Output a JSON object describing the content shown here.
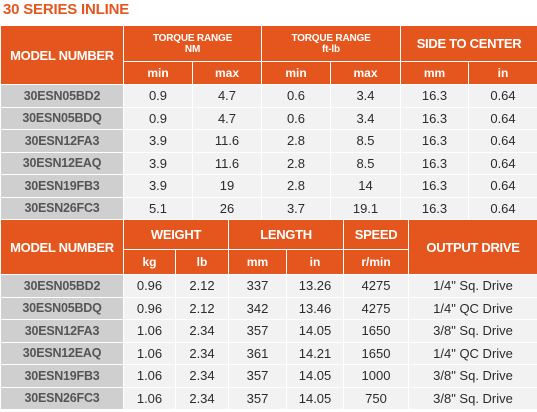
{
  "title": "30 SERIES INLINE",
  "table1": {
    "model_header": "MODEL NUMBER",
    "group1_line1": "TORQUE RANGE",
    "group1_line2": "NM",
    "group2_line1": "TORQUE RANGE",
    "group2_line2": "ft-lb",
    "group3": "SIDE TO CENTER",
    "units": [
      "min",
      "max",
      "min",
      "max",
      "mm",
      "in"
    ],
    "rows": [
      [
        "30ESN05BD2",
        "0.9",
        "4.7",
        "0.6",
        "3.4",
        "16.3",
        "0.64"
      ],
      [
        "30ESN05BDQ",
        "0.9",
        "4.7",
        "0.6",
        "3.4",
        "16.3",
        "0.64"
      ],
      [
        "30ESN12FA3",
        "3.9",
        "11.6",
        "2.8",
        "8.5",
        "16.3",
        "0.64"
      ],
      [
        "30ESN12EAQ",
        "3.9",
        "11.6",
        "2.8",
        "8.5",
        "16.3",
        "0.64"
      ],
      [
        "30ESN19FB3",
        "3.9",
        "19",
        "2.8",
        "14",
        "16.3",
        "0.64"
      ],
      [
        "30ESN26FC3",
        "5.1",
        "26",
        "3.7",
        "19.1",
        "16.3",
        "0.64"
      ]
    ]
  },
  "table2": {
    "model_header": "MODEL NUMBER",
    "group1": "WEIGHT",
    "group2": "LENGTH",
    "group3": "SPEED",
    "group4": "OUTPUT DRIVE",
    "units": [
      "kg",
      "lb",
      "mm",
      "in",
      "r/min"
    ],
    "rows": [
      [
        "30ESN05BD2",
        "0.96",
        "2.12",
        "337",
        "13.26",
        "4275",
        "1/4\" Sq. Drive"
      ],
      [
        "30ESN05BDQ",
        "0.96",
        "2.12",
        "342",
        "13.46",
        "4275",
        "1/4\" QC Drive"
      ],
      [
        "30ESN12FA3",
        "1.06",
        "2.34",
        "357",
        "14.05",
        "1650",
        "3/8\" Sq. Drive"
      ],
      [
        "30ESN12EAQ",
        "1.06",
        "2.34",
        "361",
        "14.21",
        "1650",
        "1/4\" QC Drive"
      ],
      [
        "30ESN19FB3",
        "1.06",
        "2.34",
        "357",
        "14.05",
        "1000",
        "3/8\" Sq. Drive"
      ],
      [
        "30ESN26FC3",
        "1.06",
        "2.34",
        "357",
        "14.05",
        "750",
        "3/8\" Sq. Drive"
      ]
    ]
  }
}
